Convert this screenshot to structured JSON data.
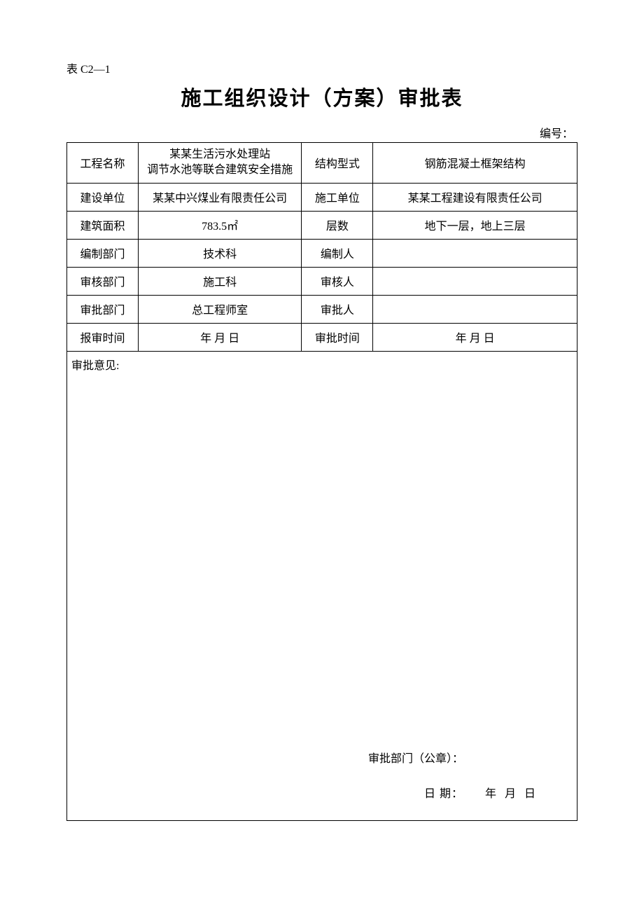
{
  "page": {
    "table_code": "表 C2—1",
    "title": "施工组织设计（方案）审批表",
    "serial_label": "编号：",
    "background_color": "#ffffff",
    "text_color": "#000000",
    "border_color": "#000000",
    "title_fontsize": 29,
    "body_fontsize": 16,
    "font_family": "SimSun"
  },
  "rows": [
    {
      "label1": "工程名称",
      "value1_line1": "某某生活污水处理站",
      "value1_line2": "调节水池等联合建筑安全措施",
      "label2": "结构型式",
      "value2": "钢筋混凝土框架结构"
    },
    {
      "label1": "建设单位",
      "value1": "某某中兴煤业有限责任公司",
      "label2": "施工单位",
      "value2": "某某工程建设有限责任公司"
    },
    {
      "label1": "建筑面积",
      "value1": "783.5㎡",
      "label2": "层数",
      "value2": "地下一层，地上三层"
    },
    {
      "label1": "编制部门",
      "value1": "技术科",
      "label2": "编制人",
      "value2": ""
    },
    {
      "label1": "审核部门",
      "value1": "施工科",
      "label2": "审核人",
      "value2": ""
    },
    {
      "label1": "审批部门",
      "value1": "总工程师室",
      "label2": "审批人",
      "value2": ""
    },
    {
      "label1": "报审时间",
      "value1": "年  月  日",
      "label2": "审批时间",
      "value2": "年  月  日"
    }
  ],
  "comments": {
    "label": "审批意见:",
    "stamp_label": "审批部门（公章）：",
    "date_label": "日 期：",
    "date_value": "年  月  日"
  }
}
